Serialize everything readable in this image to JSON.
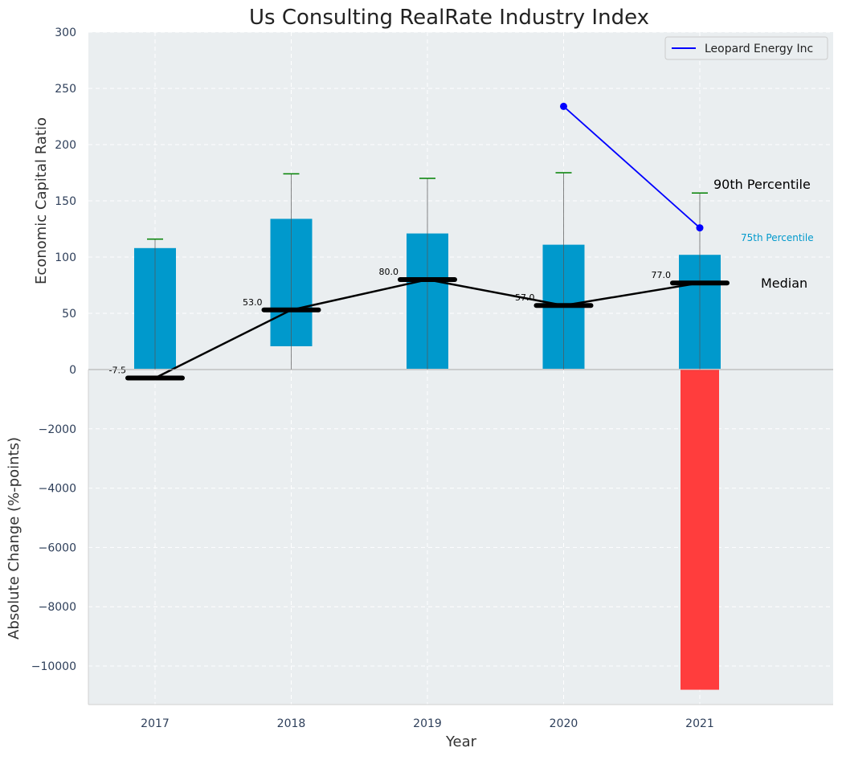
{
  "chart_data": [
    {
      "type": "box",
      "title": "Us Consulting RealRate Industry Index",
      "ylabel": "Economic Capital Ratio",
      "ylim": [
        0,
        300
      ],
      "yticks": [
        0,
        50,
        100,
        150,
        200,
        250,
        300
      ],
      "ytick_labels": [
        "0",
        "50",
        "100",
        "150",
        "200",
        "250",
        "300"
      ],
      "categories": [
        "2017",
        "2018",
        "2019",
        "2020",
        "2021"
      ],
      "grid": true,
      "legend": {
        "placement": "top-right",
        "entries": [
          "Leopard Energy Inc"
        ]
      },
      "series": [
        {
          "name": "Median",
          "type": "line",
          "values": [
            -7.5,
            53.0,
            80.0,
            57.0,
            77.0
          ],
          "value_labels": [
            "-7.5",
            "53.0",
            "80.0",
            "57.0",
            "77.0"
          ],
          "color": "#000000"
        },
        {
          "name": "Leopard Energy Inc",
          "type": "line",
          "x": [
            "2020",
            "2021"
          ],
          "values": [
            234,
            126
          ],
          "color": "#0000ff"
        }
      ],
      "boxes": [
        {
          "category": "2017",
          "low": 0,
          "high": 108,
          "whisker_low": 0,
          "whisker_high": 116
        },
        {
          "category": "2018",
          "low": 20,
          "high": 134,
          "whisker_low": 0,
          "whisker_high": 174
        },
        {
          "category": "2019",
          "low": 0,
          "high": 121,
          "whisker_low": 0,
          "whisker_high": 170
        },
        {
          "category": "2020",
          "low": 0,
          "high": 111,
          "whisker_low": 0,
          "whisker_high": 175
        },
        {
          "category": "2021",
          "low": 0,
          "high": 102,
          "whisker_low": 0,
          "whisker_high": 157
        }
      ],
      "annotations": [
        "90th Percentile",
        "75th Percentile",
        "Median"
      ],
      "colors": {
        "box": "#0099cc",
        "whisker_cap": "#008000",
        "median": "#000000",
        "company": "#0000ff",
        "background": "#eaeef0",
        "p75_label": "#0099cc"
      }
    },
    {
      "type": "bar",
      "ylabel": "Absolute Change (%-points)",
      "xlabel": "Year",
      "ylim": [
        -11300,
        0
      ],
      "yticks": [
        -10000,
        -8000,
        -6000,
        -4000,
        -2000,
        0
      ],
      "ytick_labels": [
        "−10000",
        "−8000",
        "−6000",
        "−4000",
        "−2000",
        "0"
      ],
      "categories": [
        "2017",
        "2018",
        "2019",
        "2020",
        "2021"
      ],
      "values": [
        0,
        0,
        0,
        0,
        -10800
      ],
      "grid": true,
      "colors": {
        "negative": "#ff3d3d",
        "background": "#eaeef0"
      }
    }
  ]
}
